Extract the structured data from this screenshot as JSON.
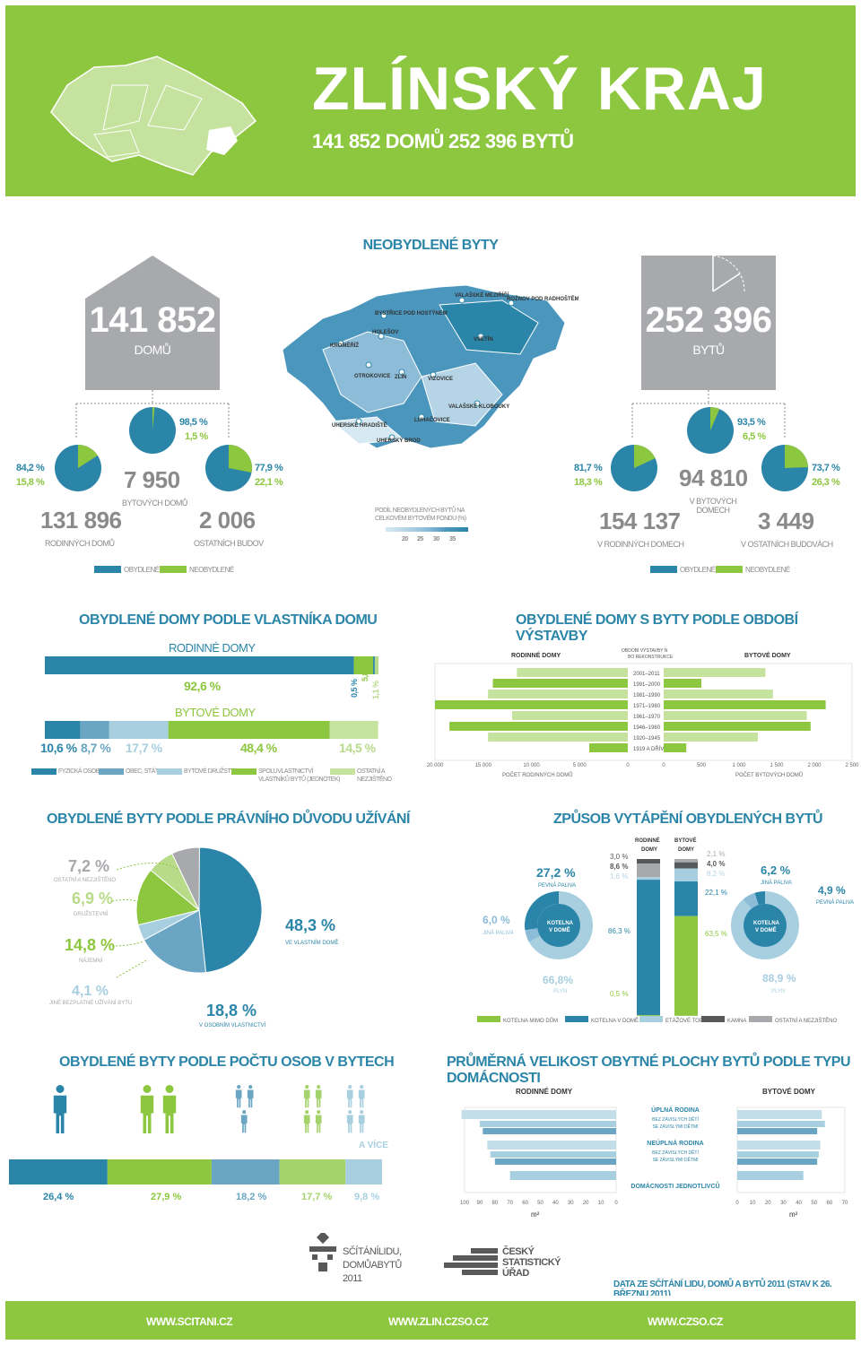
{
  "header": {
    "title": "ZLÍNSKÝ KRAJ",
    "homes": "141 852 DOMŮ",
    "flats": "252 396 BYTŮ",
    "bg": "#8dc63f"
  },
  "unoccupied": {
    "title": "NEOBYDLENÉ BYTY",
    "houses_total": "141 852",
    "houses_label": "DOMŮ",
    "flats_total": "252 396",
    "flats_label": "BYTŮ",
    "h_apart_pct": "98,5 %",
    "h_apart_pct2": "1,5 %",
    "h_apart_val": "7 950",
    "h_apart_label": "BYTOVÝCH DOMŮ",
    "h_family_pct": "84,2 %",
    "h_family_pct2": "15,8 %",
    "h_family_val": "131 896",
    "h_family_label": "RODINNÝCH DOMŮ",
    "h_other_pct": "77,9 %",
    "h_other_pct2": "22,1 %",
    "h_other_val": "2 006",
    "h_other_label": "OSTATNÍCH BUDOV",
    "f_apart_pct": "93,5 %",
    "f_apart_pct2": "6,5 %",
    "f_apart_val": "94 810",
    "f_apart_label": "V BYTOVÝCH DOMECH",
    "f_family_pct": "81,7 %",
    "f_family_pct2": "18,3 %",
    "f_family_val": "154 137",
    "f_family_label": "V RODINNÝCH DOMECH",
    "f_other_pct": "73,7 %",
    "f_other_pct2": "26,3 %",
    "f_other_val": "3 449",
    "f_other_label": "V OSTATNÍCH BUDOVÁCH",
    "legend_occ": "OBYDLENÉ",
    "legend_unocc": "NEOBYDLENÉ",
    "map_legend_title": "PODÍL NEOBYDLENÝCH BYTŮ NA CELKOVÉM BYTOVÉM FONDU (%)",
    "map_ticks": [
      "20",
      "25",
      "30",
      "35"
    ],
    "towns": [
      "BYSTŘICE POD HOSTÝNEM",
      "VALAŠSKÉ MEZIŘÍČÍ",
      "ROŽNOV POD RADHOŠTĚM",
      "HOLEŠOV",
      "KROMĚŘÍŽ",
      "VSETÍN",
      "OTROKOVICE",
      "ZLÍN",
      "VIZOVICE",
      "VALAŠSKÉ KLOBOUKY",
      "LUHAČOVICE",
      "UHERSKÉ HRADIŠTĚ",
      "UHERSKÝ BROD"
    ]
  },
  "chart_data": [
    {
      "type": "bar",
      "id": "ownership",
      "title": "OBYDLENÉ DOMY PODLE VLASTNÍKA DOMU",
      "groups": [
        {
          "name": "RODINNÉ DOMY",
          "values": [
            92.6,
            5.8,
            0.5,
            1.1
          ],
          "labels": [
            "92,6 %",
            "5,8 %",
            "0,5 %",
            "1,1 %"
          ]
        },
        {
          "name": "BYTOVÉ DOMY",
          "values": [
            10.6,
            8.7,
            17.7,
            48.4,
            14.5
          ],
          "labels": [
            "10,6 %",
            "8,7 %",
            "17,7 %",
            "48,4 %",
            "14,5 %"
          ]
        }
      ],
      "legend": [
        "FYZICKÁ OSOBA",
        "OBEC, STÁT",
        "BYTOVÉ DRUŽSTVO",
        "SPOLUVLASTNICTVÍ VLASTNÍKŮ BYTŮ (JEDNOTEK)",
        "OSTATNÍ A NEZJIŠTĚNO"
      ]
    },
    {
      "type": "bar",
      "id": "construction",
      "title": "OBYDLENÉ DOMY S BYTY PODLE OBDOBÍ VÝSTAVBY",
      "left_title": "RODINNÉ DOMY",
      "right_title": "BYTOVÉ DOMY",
      "center_title": "OBDOBÍ VÝSTAVBY NEBO REKONSTRUKCE",
      "categories": [
        "2001–2011",
        "1991–2000",
        "1981–1990",
        "1971–1980",
        "1961–1970",
        "1946–1960",
        "1920–1945",
        "1919 A DŘÍVE"
      ],
      "family": [
        11500,
        14000,
        14500,
        20000,
        12000,
        18500,
        14500,
        4000
      ],
      "apartment": [
        1350,
        500,
        1450,
        2150,
        1900,
        1950,
        1250,
        300
      ],
      "left_ticks": [
        "20 000",
        "15 000",
        "10 000",
        "5 000",
        "0"
      ],
      "right_ticks": [
        "0",
        "500",
        "1 000",
        "1 500",
        "2 000",
        "2 500"
      ],
      "xlabel_left": "POČET RODINNÝCH DOMŮ",
      "xlabel_right": "POČET BYTOVÝCH DOMŮ"
    },
    {
      "type": "pie",
      "id": "legal",
      "title": "OBYDLENÉ BYTY PODLE PRÁVNÍHO DŮVODU UŽÍVÁNÍ",
      "values": [
        48.3,
        18.8,
        4.1,
        14.8,
        6.9,
        7.2
      ],
      "labels": [
        "48,3 %",
        "18,8 %",
        "4,1 %",
        "14,8 %",
        "6,9 %",
        "7,2 %"
      ],
      "names": [
        "VE VLASTNÍM DOMĚ",
        "V OSOBNÍM VLASTNICTVÍ",
        "JINÉ BEZPLATNÉ UŽÍVÁNÍ BYTU",
        "NÁJEMNÍ",
        "DRUŽSTEVNÍ",
        "OSTATNÍ A NEZJIŠTĚNO"
      ]
    },
    {
      "type": "pie",
      "id": "heating",
      "title": "ZPŮSOB VYTÁPĚNÍ OBYDLENÝCH BYTŮ",
      "family": {
        "title": "RODINNÉ DOMY",
        "values": [
          86.3,
          3.0,
          8.6,
          1.6,
          0.5
        ],
        "labels": [
          "86,3 %",
          "3,0 %",
          "8,6 %",
          "1,6 %",
          "0,5 %"
        ],
        "donut": [
          "27,2 %",
          "PEVNÁ PALIVA",
          "6,0 %",
          "JINÁ PALIVA",
          "66,8%",
          "PLYN",
          "KOTELNA V DOMĚ"
        ]
      },
      "apartment": {
        "title": "BYTOVÉ DOMY",
        "values": [
          63.5,
          22.1,
          8.2,
          4.0,
          2.1
        ],
        "labels": [
          "63,5 %",
          "22,1 %",
          "8,2 %",
          "4,0 %",
          "2,1 %"
        ],
        "donut": [
          "6,2 %",
          "JINÁ PALIVA",
          "4,9 %",
          "PEVNÁ PALIVA",
          "88,9 %",
          "PLYN",
          "KOTELNA V DOMĚ"
        ]
      },
      "legend": [
        "KOTELNA MIMO DŮM",
        "KOTELNA V DOMĚ",
        "ETÁŽOVÉ TOPENÍ",
        "KAMNA",
        "OSTATNÍ A NEZJIŠTĚNO"
      ]
    },
    {
      "type": "bar",
      "id": "persons",
      "title": "OBYDLENÉ BYTY PODLE POČTU OSOB V BYTECH",
      "values": [
        26.4,
        27.9,
        18.2,
        17.7,
        9.8
      ],
      "labels": [
        "26,4 %",
        "27,9 %",
        "18,2 %",
        "17,7 %",
        "9,8 %"
      ],
      "more": "A VÍCE"
    },
    {
      "type": "bar",
      "id": "area",
      "title": "PRŮMĚRNÁ VELIKOST OBYTNÉ PLOCHY BYTŮ PODLE TYPU DOMÁCNOSTI",
      "left_title": "RODINNÉ DOMY",
      "right_title": "BYTOVÉ DOMY",
      "categories": [
        "ÚPLNÁ RODINA",
        "BEZ ZÁVISLÝCH DĚTÍ",
        "SE ZÁVISLÝMI DĚTMI",
        "NEÚPLNÁ RODINA",
        "BEZ ZÁVISLÝCH DĚTÍ",
        "SE ZÁVISLÝMI DĚTMI",
        "DOMÁCNOSTI JEDNOTLIVCŮ"
      ],
      "family": [
        102,
        90,
        88,
        85,
        83,
        80,
        70
      ],
      "apartment": [
        55,
        57,
        52,
        54,
        53,
        52,
        43
      ],
      "left_ticks": [
        "100",
        "90",
        "80",
        "70",
        "60",
        "50",
        "40",
        "30",
        "20",
        "10",
        "0"
      ],
      "right_ticks": [
        "0",
        "10",
        "20",
        "30",
        "40",
        "50",
        "60",
        "70"
      ],
      "unit": "m²"
    }
  ],
  "footer": {
    "logo1_l1": "SČÍTÁNÍLIDU,",
    "logo1_l2": "DOMŮABYTŮ",
    "logo1_l3": "2011",
    "logo2_l1": "ČESKÝ",
    "logo2_l2": "STATISTICKÝ",
    "logo2_l3": "ÚŘAD",
    "note": "DATA ZE SČÍTÁNÍ LIDU, DOMŮ A BYTŮ 2011 (STAV K 26. BŘEZNU 2011)",
    "links": [
      "WWW.SCITANI.CZ",
      "WWW.ZLIN.CZSO.CZ",
      "WWW.CZSO.CZ"
    ]
  },
  "colors": {
    "blue": "#2b85a8",
    "green": "#8dc63f",
    "lightblue": "#a8cfe0",
    "midblue": "#6aa6c4",
    "grey": "#a7a9ac",
    "dark": "#58595b"
  }
}
